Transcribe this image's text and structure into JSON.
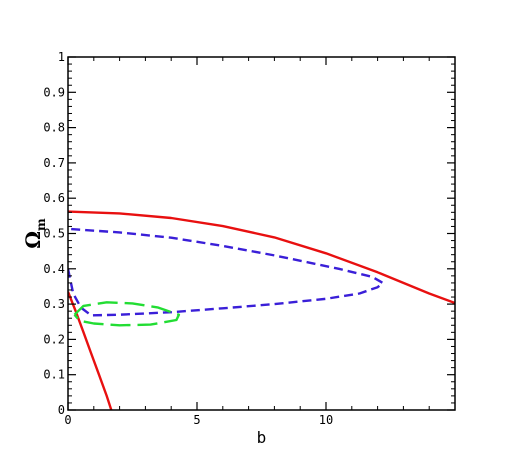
{
  "chart_data": {
    "type": "line",
    "title": "",
    "xlabel": "b",
    "ylabel_main": "Ω",
    "ylabel_sub": "m",
    "xlim": [
      0,
      15
    ],
    "ylim": [
      0,
      1
    ],
    "x_ticks": [
      0,
      5,
      10
    ],
    "x_tick_labels": [
      "0",
      "5",
      "10"
    ],
    "y_ticks": [
      0,
      0.1,
      0.2,
      0.3,
      0.4,
      0.5,
      0.6,
      0.7,
      0.8,
      0.9,
      1
    ],
    "y_tick_labels": [
      "0",
      "0.1",
      "0.2",
      "0.3",
      "0.4",
      "0.5",
      "0.6",
      "0.7",
      "0.8",
      "0.9",
      "1"
    ],
    "grid": false,
    "series": [
      {
        "style": "solid",
        "color": "#e81010",
        "segments": [
          [
            [
              0,
              0.562
            ],
            [
              2,
              0.557
            ],
            [
              4,
              0.544
            ],
            [
              6,
              0.521
            ],
            [
              8,
              0.489
            ],
            [
              10,
              0.444
            ],
            [
              12,
              0.39
            ],
            [
              14,
              0.33
            ],
            [
              15,
              0.303
            ]
          ],
          [
            [
              0,
              0.335
            ],
            [
              0.3,
              0.28
            ],
            [
              0.6,
              0.22
            ],
            [
              0.9,
              0.16
            ],
            [
              1.2,
              0.1
            ],
            [
              1.5,
              0.04
            ],
            [
              1.68,
              0
            ]
          ]
        ]
      },
      {
        "style": "dashed",
        "color": "#3a1fd8",
        "segments": [
          [
            [
              0,
              0.4
            ],
            [
              0.2,
              0.33
            ],
            [
              0.5,
              0.29
            ],
            [
              0.9,
              0.268
            ],
            [
              2,
              0.27
            ],
            [
              4,
              0.277
            ],
            [
              6,
              0.288
            ],
            [
              8,
              0.3
            ],
            [
              10,
              0.315
            ],
            [
              11.3,
              0.33
            ],
            [
              12,
              0.348
            ],
            [
              12.2,
              0.36
            ],
            [
              11.8,
              0.377
            ],
            [
              10.5,
              0.4
            ],
            [
              8,
              0.438
            ],
            [
              6,
              0.465
            ],
            [
              4,
              0.488
            ],
            [
              2,
              0.503
            ],
            [
              0,
              0.513
            ]
          ]
        ]
      },
      {
        "style": "longdash",
        "color": "#22dd33",
        "segments": [
          [
            [
              0.25,
              0.27
            ],
            [
              0.6,
              0.295
            ],
            [
              1.5,
              0.305
            ],
            [
              2.5,
              0.302
            ],
            [
              3.5,
              0.29
            ],
            [
              4.3,
              0.27
            ],
            [
              4.2,
              0.255
            ],
            [
              3.2,
              0.242
            ],
            [
              2,
              0.24
            ],
            [
              1,
              0.245
            ],
            [
              0.45,
              0.253
            ],
            [
              0.25,
              0.27
            ]
          ]
        ]
      }
    ]
  }
}
